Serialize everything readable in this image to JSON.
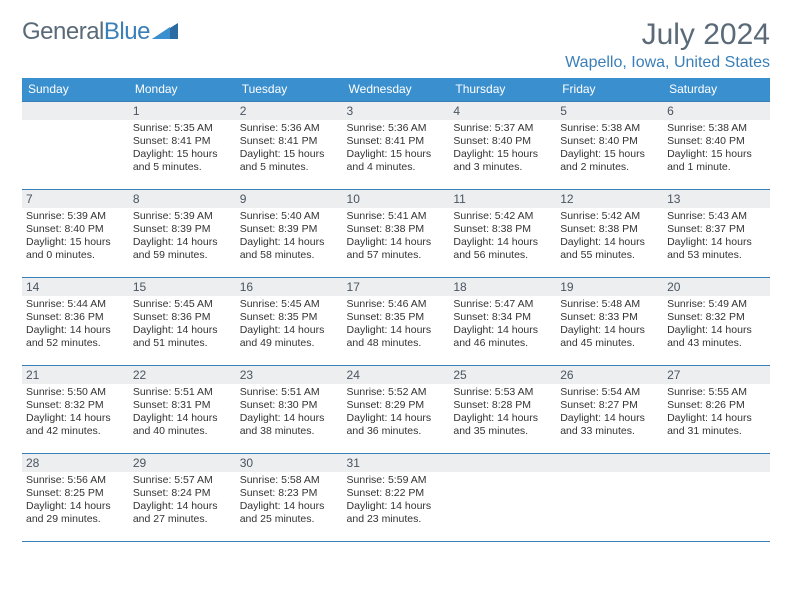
{
  "logo": {
    "text1": "General",
    "text2": "Blue"
  },
  "title": "July 2024",
  "location": "Wapello, Iowa, United States",
  "colors": {
    "header_bg": "#3a8fce",
    "header_text": "#ffffff",
    "daynum_bg": "#eceef0",
    "rule": "#3a7fb8",
    "logo_triangle": "#2b6aa3"
  },
  "day_labels": [
    "Sunday",
    "Monday",
    "Tuesday",
    "Wednesday",
    "Thursday",
    "Friday",
    "Saturday"
  ],
  "weeks": [
    [
      {
        "n": "",
        "sr": "",
        "ss": "",
        "dl": ""
      },
      {
        "n": "1",
        "sr": "Sunrise: 5:35 AM",
        "ss": "Sunset: 8:41 PM",
        "dl": "Daylight: 15 hours and 5 minutes."
      },
      {
        "n": "2",
        "sr": "Sunrise: 5:36 AM",
        "ss": "Sunset: 8:41 PM",
        "dl": "Daylight: 15 hours and 5 minutes."
      },
      {
        "n": "3",
        "sr": "Sunrise: 5:36 AM",
        "ss": "Sunset: 8:41 PM",
        "dl": "Daylight: 15 hours and 4 minutes."
      },
      {
        "n": "4",
        "sr": "Sunrise: 5:37 AM",
        "ss": "Sunset: 8:40 PM",
        "dl": "Daylight: 15 hours and 3 minutes."
      },
      {
        "n": "5",
        "sr": "Sunrise: 5:38 AM",
        "ss": "Sunset: 8:40 PM",
        "dl": "Daylight: 15 hours and 2 minutes."
      },
      {
        "n": "6",
        "sr": "Sunrise: 5:38 AM",
        "ss": "Sunset: 8:40 PM",
        "dl": "Daylight: 15 hours and 1 minute."
      }
    ],
    [
      {
        "n": "7",
        "sr": "Sunrise: 5:39 AM",
        "ss": "Sunset: 8:40 PM",
        "dl": "Daylight: 15 hours and 0 minutes."
      },
      {
        "n": "8",
        "sr": "Sunrise: 5:39 AM",
        "ss": "Sunset: 8:39 PM",
        "dl": "Daylight: 14 hours and 59 minutes."
      },
      {
        "n": "9",
        "sr": "Sunrise: 5:40 AM",
        "ss": "Sunset: 8:39 PM",
        "dl": "Daylight: 14 hours and 58 minutes."
      },
      {
        "n": "10",
        "sr": "Sunrise: 5:41 AM",
        "ss": "Sunset: 8:38 PM",
        "dl": "Daylight: 14 hours and 57 minutes."
      },
      {
        "n": "11",
        "sr": "Sunrise: 5:42 AM",
        "ss": "Sunset: 8:38 PM",
        "dl": "Daylight: 14 hours and 56 minutes."
      },
      {
        "n": "12",
        "sr": "Sunrise: 5:42 AM",
        "ss": "Sunset: 8:38 PM",
        "dl": "Daylight: 14 hours and 55 minutes."
      },
      {
        "n": "13",
        "sr": "Sunrise: 5:43 AM",
        "ss": "Sunset: 8:37 PM",
        "dl": "Daylight: 14 hours and 53 minutes."
      }
    ],
    [
      {
        "n": "14",
        "sr": "Sunrise: 5:44 AM",
        "ss": "Sunset: 8:36 PM",
        "dl": "Daylight: 14 hours and 52 minutes."
      },
      {
        "n": "15",
        "sr": "Sunrise: 5:45 AM",
        "ss": "Sunset: 8:36 PM",
        "dl": "Daylight: 14 hours and 51 minutes."
      },
      {
        "n": "16",
        "sr": "Sunrise: 5:45 AM",
        "ss": "Sunset: 8:35 PM",
        "dl": "Daylight: 14 hours and 49 minutes."
      },
      {
        "n": "17",
        "sr": "Sunrise: 5:46 AM",
        "ss": "Sunset: 8:35 PM",
        "dl": "Daylight: 14 hours and 48 minutes."
      },
      {
        "n": "18",
        "sr": "Sunrise: 5:47 AM",
        "ss": "Sunset: 8:34 PM",
        "dl": "Daylight: 14 hours and 46 minutes."
      },
      {
        "n": "19",
        "sr": "Sunrise: 5:48 AM",
        "ss": "Sunset: 8:33 PM",
        "dl": "Daylight: 14 hours and 45 minutes."
      },
      {
        "n": "20",
        "sr": "Sunrise: 5:49 AM",
        "ss": "Sunset: 8:32 PM",
        "dl": "Daylight: 14 hours and 43 minutes."
      }
    ],
    [
      {
        "n": "21",
        "sr": "Sunrise: 5:50 AM",
        "ss": "Sunset: 8:32 PM",
        "dl": "Daylight: 14 hours and 42 minutes."
      },
      {
        "n": "22",
        "sr": "Sunrise: 5:51 AM",
        "ss": "Sunset: 8:31 PM",
        "dl": "Daylight: 14 hours and 40 minutes."
      },
      {
        "n": "23",
        "sr": "Sunrise: 5:51 AM",
        "ss": "Sunset: 8:30 PM",
        "dl": "Daylight: 14 hours and 38 minutes."
      },
      {
        "n": "24",
        "sr": "Sunrise: 5:52 AM",
        "ss": "Sunset: 8:29 PM",
        "dl": "Daylight: 14 hours and 36 minutes."
      },
      {
        "n": "25",
        "sr": "Sunrise: 5:53 AM",
        "ss": "Sunset: 8:28 PM",
        "dl": "Daylight: 14 hours and 35 minutes."
      },
      {
        "n": "26",
        "sr": "Sunrise: 5:54 AM",
        "ss": "Sunset: 8:27 PM",
        "dl": "Daylight: 14 hours and 33 minutes."
      },
      {
        "n": "27",
        "sr": "Sunrise: 5:55 AM",
        "ss": "Sunset: 8:26 PM",
        "dl": "Daylight: 14 hours and 31 minutes."
      }
    ],
    [
      {
        "n": "28",
        "sr": "Sunrise: 5:56 AM",
        "ss": "Sunset: 8:25 PM",
        "dl": "Daylight: 14 hours and 29 minutes."
      },
      {
        "n": "29",
        "sr": "Sunrise: 5:57 AM",
        "ss": "Sunset: 8:24 PM",
        "dl": "Daylight: 14 hours and 27 minutes."
      },
      {
        "n": "30",
        "sr": "Sunrise: 5:58 AM",
        "ss": "Sunset: 8:23 PM",
        "dl": "Daylight: 14 hours and 25 minutes."
      },
      {
        "n": "31",
        "sr": "Sunrise: 5:59 AM",
        "ss": "Sunset: 8:22 PM",
        "dl": "Daylight: 14 hours and 23 minutes."
      },
      {
        "n": "",
        "sr": "",
        "ss": "",
        "dl": ""
      },
      {
        "n": "",
        "sr": "",
        "ss": "",
        "dl": ""
      },
      {
        "n": "",
        "sr": "",
        "ss": "",
        "dl": ""
      }
    ]
  ]
}
